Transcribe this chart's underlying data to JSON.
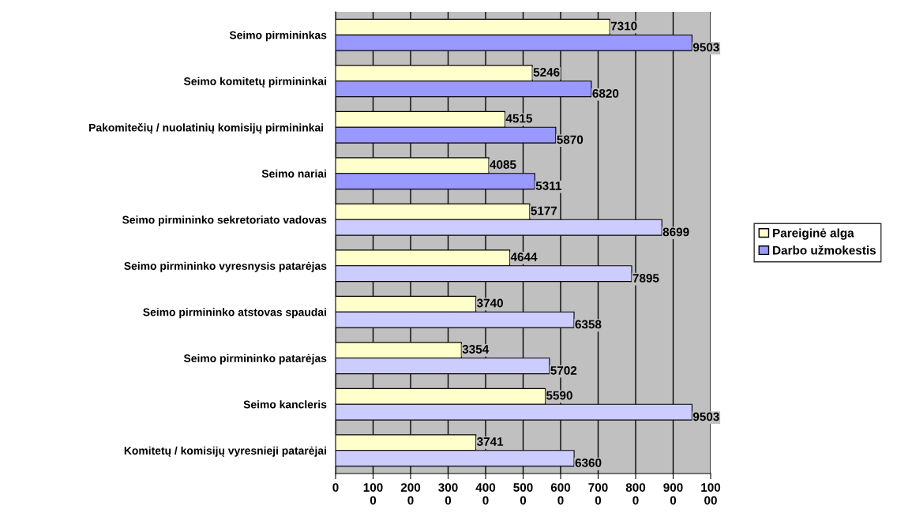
{
  "chart_data": {
    "type": "bar",
    "orientation": "horizontal",
    "categories": [
      "Seimo pirmininkas",
      "Seimo komitetų pirmininkai",
      "Pakomitečių / nuolatinių komisijų pirmininkai ",
      "Seimo nariai",
      "Seimo pirmininko sekretoriato vadovas",
      "Seimo pirmininko vyresnysis patarėjas",
      "Seimo pirmininko atstovas spaudai",
      "Seimo pirmininko patarėjas",
      "Seimo kancleris",
      "Komitetų / komisijų vyresnieji patarėjai"
    ],
    "series": [
      {
        "name": "Pareiginė alga",
        "color": "#ffffcc",
        "values": [
          7310,
          5246,
          4515,
          4085,
          5177,
          4644,
          3740,
          3354,
          5590,
          3741
        ]
      },
      {
        "name": "Darbo užmokestis",
        "color": "#9999ff",
        "colors": [
          "#9999ff",
          "#9999ff",
          "#9999ff",
          "#9999ff",
          "#ccccff",
          "#ccccff",
          "#ccccff",
          "#ccccff",
          "#ccccff",
          "#ccccff"
        ],
        "values": [
          9503,
          6820,
          5870,
          5311,
          8699,
          7895,
          6358,
          5702,
          9503,
          6360
        ]
      }
    ],
    "xlim": [
      0,
      10000
    ],
    "xticks": [
      0,
      1000,
      2000,
      3000,
      4000,
      5000,
      6000,
      7000,
      8000,
      9000,
      10000
    ],
    "grid": "x",
    "legend": "right",
    "data_labels": true
  }
}
